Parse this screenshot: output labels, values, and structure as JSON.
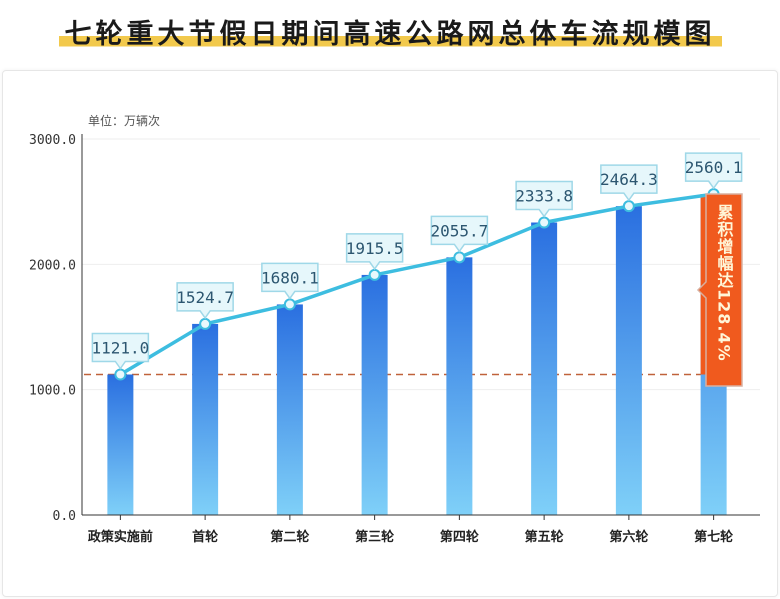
{
  "title": "七轮重大节假日期间高速公路网总体车流规模图",
  "chart_data": {
    "type": "bar",
    "title": "七轮重大节假日期间高速公路网总体车流规模图",
    "unit_label": "单位：万辆次",
    "categories": [
      "政策实施前",
      "首轮",
      "第二轮",
      "第三轮",
      "第四轮",
      "第五轮",
      "第六轮",
      "第七轮"
    ],
    "values": [
      1121.0,
      1524.7,
      1680.1,
      1915.5,
      2055.7,
      2333.8,
      2464.3,
      2560.1
    ],
    "value_labels": [
      "1121.0",
      "1524.7",
      "1680.1",
      "1915.5",
      "2055.7",
      "2333.8",
      "2464.3",
      "2560.1"
    ],
    "yticks": [
      "0.0",
      "1000.0",
      "2000.0",
      "3000.0"
    ],
    "ytick_values": [
      0,
      1000,
      2000,
      3000
    ],
    "ylim": [
      0,
      3000
    ],
    "baseline_reference": 1121.0,
    "annotation": "累积增幅达128.4%",
    "colors": {
      "bar_top": "#2a6fe0",
      "bar_bottom": "#7fd0f8",
      "line": "#3dbde0",
      "highlight": "#f05a1e",
      "dash": "#c0623a",
      "title_highlight": "#f2c94c"
    }
  }
}
